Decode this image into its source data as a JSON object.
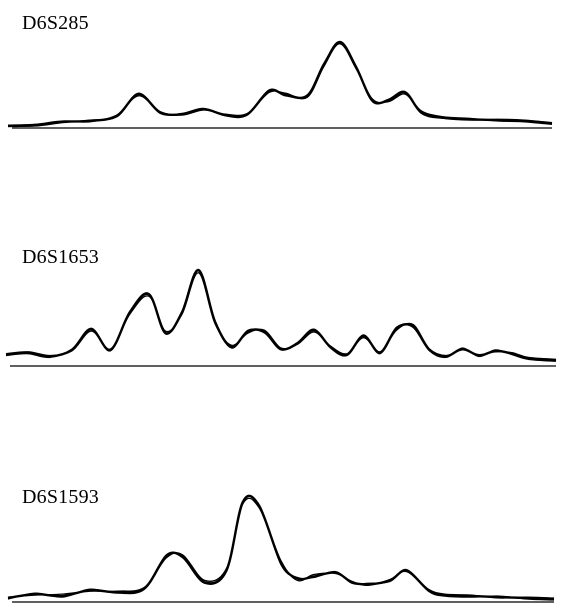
{
  "chart_data": [
    {
      "type": "line",
      "title": "D6S285",
      "xlabel": "",
      "ylabel": "",
      "grid": false,
      "x": [
        0,
        0.05,
        0.1,
        0.15,
        0.2,
        0.24,
        0.28,
        0.32,
        0.36,
        0.4,
        0.44,
        0.48,
        0.51,
        0.55,
        0.58,
        0.61,
        0.64,
        0.67,
        0.7,
        0.73,
        0.76,
        0.8,
        0.85,
        0.9,
        0.95,
        1.0
      ],
      "series": [
        {
          "values": [
            0.0,
            0.01,
            0.05,
            0.06,
            0.12,
            0.38,
            0.16,
            0.14,
            0.2,
            0.13,
            0.14,
            0.42,
            0.37,
            0.36,
            0.72,
            1.0,
            0.7,
            0.3,
            0.31,
            0.4,
            0.16,
            0.1,
            0.08,
            0.07,
            0.06,
            0.03
          ]
        },
        {
          "values": [
            0.01,
            0.02,
            0.06,
            0.05,
            0.13,
            0.36,
            0.17,
            0.13,
            0.19,
            0.14,
            0.15,
            0.4,
            0.39,
            0.34,
            0.7,
            0.98,
            0.68,
            0.32,
            0.29,
            0.38,
            0.18,
            0.11,
            0.09,
            0.06,
            0.05,
            0.02
          ]
        },
        {
          "values": [
            0.0,
            0.0,
            0.04,
            0.07,
            0.11,
            0.39,
            0.15,
            0.15,
            0.21,
            0.12,
            0.13,
            0.43,
            0.36,
            0.37,
            0.74,
            0.99,
            0.71,
            0.29,
            0.32,
            0.41,
            0.15,
            0.09,
            0.07,
            0.08,
            0.07,
            0.04
          ]
        }
      ]
    },
    {
      "type": "line",
      "title": "D6S1653",
      "xlabel": "",
      "ylabel": "",
      "grid": false,
      "x": [
        0,
        0.04,
        0.08,
        0.12,
        0.155,
        0.19,
        0.225,
        0.26,
        0.29,
        0.32,
        0.35,
        0.38,
        0.41,
        0.44,
        0.47,
        0.5,
        0.53,
        0.56,
        0.59,
        0.62,
        0.65,
        0.68,
        0.71,
        0.74,
        0.77,
        0.8,
        0.83,
        0.86,
        0.89,
        0.92,
        0.95,
        1.0
      ],
      "series": [
        {
          "values": [
            0.1,
            0.12,
            0.08,
            0.15,
            0.37,
            0.15,
            0.55,
            0.74,
            0.33,
            0.55,
            1.0,
            0.45,
            0.18,
            0.35,
            0.34,
            0.16,
            0.22,
            0.36,
            0.18,
            0.1,
            0.3,
            0.12,
            0.38,
            0.4,
            0.15,
            0.08,
            0.16,
            0.09,
            0.14,
            0.11,
            0.06,
            0.04
          ]
        },
        {
          "values": [
            0.11,
            0.13,
            0.09,
            0.14,
            0.35,
            0.16,
            0.53,
            0.72,
            0.35,
            0.53,
            0.97,
            0.43,
            0.2,
            0.33,
            0.36,
            0.17,
            0.21,
            0.34,
            0.19,
            0.11,
            0.28,
            0.13,
            0.36,
            0.42,
            0.16,
            0.09,
            0.15,
            0.1,
            0.13,
            0.12,
            0.07,
            0.05
          ]
        },
        {
          "values": [
            0.09,
            0.11,
            0.07,
            0.16,
            0.38,
            0.14,
            0.56,
            0.75,
            0.32,
            0.56,
            0.99,
            0.46,
            0.17,
            0.36,
            0.33,
            0.15,
            0.23,
            0.37,
            0.17,
            0.09,
            0.31,
            0.11,
            0.39,
            0.39,
            0.14,
            0.07,
            0.17,
            0.08,
            0.15,
            0.1,
            0.05,
            0.03
          ]
        }
      ]
    },
    {
      "type": "line",
      "title": "D6S1593",
      "xlabel": "",
      "ylabel": "",
      "grid": false,
      "x": [
        0,
        0.05,
        0.1,
        0.15,
        0.2,
        0.25,
        0.29,
        0.32,
        0.36,
        0.4,
        0.43,
        0.46,
        0.5,
        0.53,
        0.56,
        0.6,
        0.63,
        0.66,
        0.7,
        0.73,
        0.77,
        0.8,
        0.85,
        0.9,
        0.95,
        1.0
      ],
      "series": [
        {
          "values": [
            0.02,
            0.06,
            0.04,
            0.1,
            0.08,
            0.12,
            0.45,
            0.44,
            0.18,
            0.3,
            1.0,
            0.96,
            0.38,
            0.22,
            0.24,
            0.28,
            0.18,
            0.16,
            0.2,
            0.3,
            0.1,
            0.05,
            0.04,
            0.03,
            0.02,
            0.01
          ]
        },
        {
          "values": [
            0.03,
            0.05,
            0.06,
            0.09,
            0.09,
            0.13,
            0.43,
            0.46,
            0.2,
            0.32,
            0.98,
            0.94,
            0.4,
            0.2,
            0.26,
            0.27,
            0.19,
            0.15,
            0.21,
            0.29,
            0.11,
            0.06,
            0.05,
            0.02,
            0.03,
            0.02
          ]
        },
        {
          "values": [
            0.01,
            0.07,
            0.03,
            0.11,
            0.07,
            0.11,
            0.46,
            0.43,
            0.17,
            0.29,
            0.99,
            0.97,
            0.36,
            0.23,
            0.23,
            0.29,
            0.17,
            0.17,
            0.19,
            0.31,
            0.09,
            0.04,
            0.03,
            0.04,
            0.01,
            0.0
          ]
        }
      ]
    }
  ]
}
